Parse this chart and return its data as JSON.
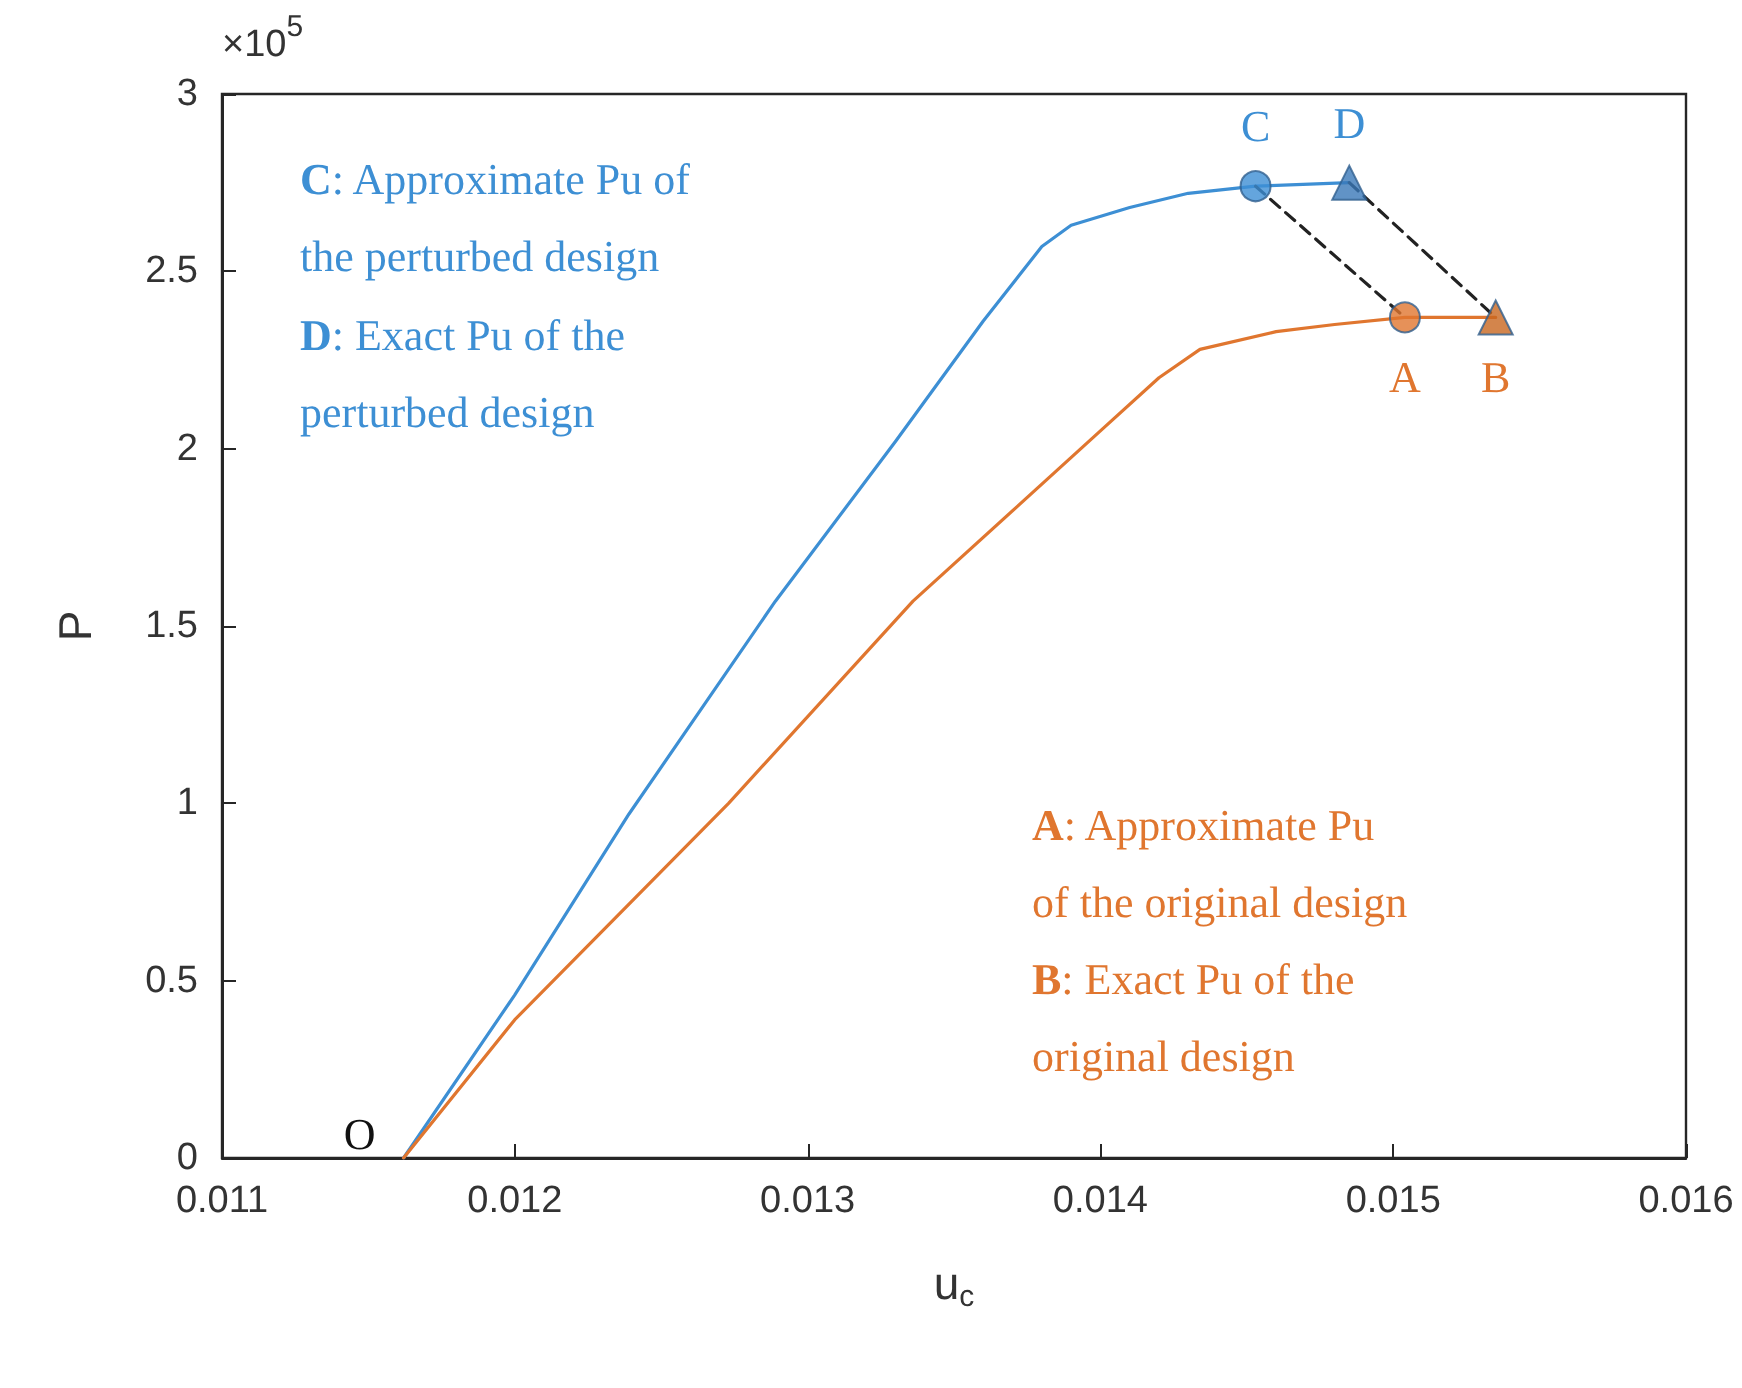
{
  "chart_data": {
    "type": "line",
    "xlabel": "u$_{c}$",
    "ylabel": "P",
    "xlim": [
      0.011,
      0.016
    ],
    "xticks": [
      0.011,
      0.012,
      0.013,
      0.014,
      0.015,
      0.016
    ],
    "ylim": [
      0,
      3
    ],
    "yticks": [
      0,
      0.5,
      1,
      1.5,
      2,
      2.5,
      3
    ],
    "grid": false,
    "series": [
      {
        "color": "#3d8fd4",
        "marker": "none",
        "x": [
          0.01162,
          0.012,
          0.01239,
          0.01289,
          0.0133,
          0.0136,
          0.0138,
          0.0139,
          0.0141,
          0.0143,
          0.01453,
          0.01485
        ],
        "values": [
          0,
          0.46,
          0.97,
          1.57,
          2.02,
          2.36,
          2.57,
          2.63,
          2.68,
          2.72,
          2.74,
          2.75
        ]
      },
      {
        "color": "#e0762f",
        "marker": "none",
        "x": [
          0.01162,
          0.012,
          0.01273,
          0.01336,
          0.014,
          0.0142,
          0.01434,
          0.0146,
          0.0148,
          0.01504,
          0.01535
        ],
        "values": [
          0,
          0.39,
          1.0,
          1.57,
          2.05,
          2.2,
          2.28,
          2.33,
          2.35,
          2.37,
          2.37
        ]
      },
      {
        "color": "#222222",
        "marker": "none",
        "line_style": "dashed",
        "x": [
          0.01453,
          0.01504
        ],
        "values": [
          2.74,
          2.37
        ]
      },
      {
        "color": "#222222",
        "marker": "none",
        "line_style": "dashed",
        "x": [
          0.01485,
          0.01535
        ],
        "values": [
          2.75,
          2.37
        ]
      },
      {
        "type": "scatter",
        "marker": "circle",
        "colors": [
          "#3d8fd4",
          "#e0762f"
        ],
        "x": [
          0.01453,
          0.01504
        ],
        "values": [
          2.74,
          2.37
        ]
      },
      {
        "type": "scatter",
        "marker": "triangle",
        "colors": [
          "#3a78b8",
          "#c8661f"
        ],
        "x": [
          0.01485,
          0.01535
        ],
        "values": [
          2.75,
          2.37
        ]
      }
    ],
    "annotations": [
      "×10$^{5}$",
      "C: Approximate Pu of\nthe perturbed design",
      "D: Exact Pu of the\nperturbed design",
      "A: Approximate Pu\nof the original design",
      "B: Exact Pu of the\noriginal design",
      {
        "text": "A",
        "x": 0.01504,
        "y": 2.37
      },
      {
        "text": "B",
        "x": 0.01535,
        "y": 2.37
      },
      {
        "text": "C",
        "x": 0.01453,
        "y": 2.74
      },
      {
        "text": "D",
        "x": 0.01485,
        "y": 2.75
      },
      {
        "text": "O",
        "x": 0.01162,
        "y": 0
      }
    ]
  }
}
